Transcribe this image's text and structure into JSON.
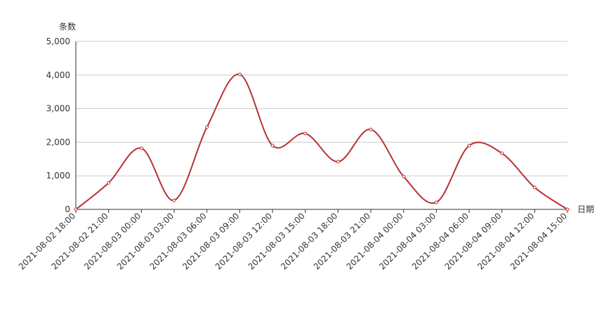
{
  "chart_data": {
    "type": "line",
    "y_axis_label": "条数",
    "x_axis_label": "日期",
    "categories": [
      "2021-08-02 18:00",
      "2021-08-02 21:00",
      "2021-08-03 00:00",
      "2021-08-03 03:00",
      "2021-08-03 06:00",
      "2021-08-03 09:00",
      "2021-08-03 12:00",
      "2021-08-03 15:00",
      "2021-08-03 18:00",
      "2021-08-03 21:00",
      "2021-08-04 00:00",
      "2021-08-04 03:00",
      "2021-08-04 06:00",
      "2021-08-04 09:00",
      "2021-08-04 12:00",
      "2021-08-04 15:00"
    ],
    "values": [
      0,
      790,
      1820,
      270,
      2450,
      4020,
      1900,
      2260,
      1420,
      2380,
      980,
      210,
      1900,
      1670,
      650,
      0
    ],
    "color": "#b83232",
    "smooth": true,
    "grid": true,
    "ylim": [
      0,
      5000
    ],
    "yticks": [
      0,
      {
        "value": 1000,
        "label": "1,000"
      },
      {
        "value": 2000,
        "label": "2,000"
      },
      {
        "value": 3000,
        "label": "3,000"
      },
      {
        "value": 4000,
        "label": "4,000"
      },
      {
        "value": 5000,
        "label": "5,000"
      }
    ]
  }
}
